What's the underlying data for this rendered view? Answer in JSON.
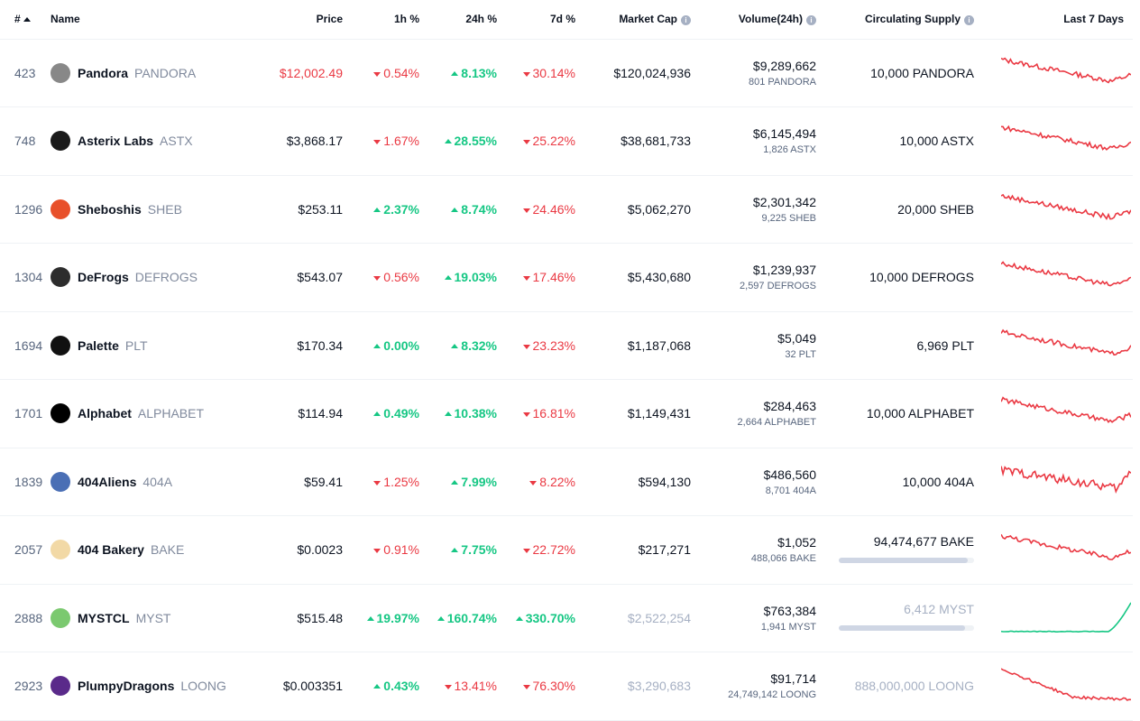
{
  "header": {
    "rank": "#",
    "name": "Name",
    "price": "Price",
    "h1": "1h %",
    "h24": "24h %",
    "d7": "7d %",
    "market_cap": "Market Cap",
    "volume": "Volume(24h)",
    "supply": "Circulating Supply",
    "last7": "Last 7 Days",
    "info_glyph": "i"
  },
  "colors": {
    "up": "#16c784",
    "down": "#ea3943",
    "muted": "#a6b0c3"
  },
  "rows": [
    {
      "rank": "423",
      "name": "Pandora",
      "symbol": "PANDORA",
      "price": "$12,002.49",
      "price_color": "#ea3943",
      "h1": "0.54%",
      "h1_dir": "down",
      "h24": "8.13%",
      "h24_dir": "up",
      "d7": "30.14%",
      "d7_dir": "down",
      "market_cap": "$120,024,936",
      "cap_muted": false,
      "volume": "$9,289,662",
      "volume_sub": "801 PANDORA",
      "supply": "10,000 PANDORA",
      "supply_muted": false,
      "supply_fill": null,
      "logo_color": "#888888",
      "logo_icon": "pandora-logo-icon",
      "trend": "down"
    },
    {
      "rank": "748",
      "name": "Asterix Labs",
      "symbol": "ASTX",
      "price": "$3,868.17",
      "price_color": "",
      "h1": "1.67%",
      "h1_dir": "down",
      "h24": "28.55%",
      "h24_dir": "up",
      "d7": "25.22%",
      "d7_dir": "down",
      "market_cap": "$38,681,733",
      "cap_muted": false,
      "volume": "$6,145,494",
      "volume_sub": "1,826 ASTX",
      "supply": "10,000 ASTX",
      "supply_muted": false,
      "supply_fill": null,
      "logo_color": "#1a1a1a",
      "logo_icon": "asterix-labs-logo-icon",
      "trend": "down"
    },
    {
      "rank": "1296",
      "name": "Sheboshis",
      "symbol": "SHEB",
      "price": "$253.11",
      "price_color": "",
      "h1": "2.37%",
      "h1_dir": "up",
      "h24": "8.74%",
      "h24_dir": "up",
      "d7": "24.46%",
      "d7_dir": "down",
      "market_cap": "$5,062,270",
      "cap_muted": false,
      "volume": "$2,301,342",
      "volume_sub": "9,225 SHEB",
      "supply": "20,000 SHEB",
      "supply_muted": false,
      "supply_fill": null,
      "logo_color": "#e8502a",
      "logo_icon": "sheboshis-logo-icon",
      "trend": "down"
    },
    {
      "rank": "1304",
      "name": "DeFrogs",
      "symbol": "DEFROGS",
      "price": "$543.07",
      "price_color": "",
      "h1": "0.56%",
      "h1_dir": "down",
      "h24": "19.03%",
      "h24_dir": "up",
      "d7": "17.46%",
      "d7_dir": "down",
      "market_cap": "$5,430,680",
      "cap_muted": false,
      "volume": "$1,239,937",
      "volume_sub": "2,597 DEFROGS",
      "supply": "10,000 DEFROGS",
      "supply_muted": false,
      "supply_fill": null,
      "logo_color": "#2d2d2d",
      "logo_icon": "defrogs-logo-icon",
      "trend": "down"
    },
    {
      "rank": "1694",
      "name": "Palette",
      "symbol": "PLT",
      "price": "$170.34",
      "price_color": "",
      "h1": "0.00%",
      "h1_dir": "up",
      "h24": "8.32%",
      "h24_dir": "up",
      "d7": "23.23%",
      "d7_dir": "down",
      "market_cap": "$1,187,068",
      "cap_muted": false,
      "volume": "$5,049",
      "volume_sub": "32 PLT",
      "supply": "6,969 PLT",
      "supply_muted": false,
      "supply_fill": null,
      "logo_color": "#111111",
      "logo_icon": "palette-logo-icon",
      "trend": "down"
    },
    {
      "rank": "1701",
      "name": "Alphabet",
      "symbol": "ALPHABET",
      "price": "$114.94",
      "price_color": "",
      "h1": "0.49%",
      "h1_dir": "up",
      "h24": "10.38%",
      "h24_dir": "up",
      "d7": "16.81%",
      "d7_dir": "down",
      "market_cap": "$1,149,431",
      "cap_muted": false,
      "volume": "$284,463",
      "volume_sub": "2,664 ALPHABET",
      "supply": "10,000 ALPHABET",
      "supply_muted": false,
      "supply_fill": null,
      "logo_color": "#000000",
      "logo_icon": "alphabet-logo-icon",
      "trend": "down"
    },
    {
      "rank": "1839",
      "name": "404Aliens",
      "symbol": "404A",
      "price": "$59.41",
      "price_color": "",
      "h1": "1.25%",
      "h1_dir": "down",
      "h24": "7.99%",
      "h24_dir": "up",
      "d7": "8.22%",
      "d7_dir": "down",
      "market_cap": "$594,130",
      "cap_muted": false,
      "volume": "$486,560",
      "volume_sub": "8,701 404A",
      "supply": "10,000 404A",
      "supply_muted": false,
      "supply_fill": null,
      "logo_color": "#4a6fb5",
      "logo_icon": "404aliens-logo-icon",
      "trend": "down-recover"
    },
    {
      "rank": "2057",
      "name": "404 Bakery",
      "symbol": "BAKE",
      "price": "$0.0023",
      "price_color": "",
      "h1": "0.91%",
      "h1_dir": "down",
      "h24": "7.75%",
      "h24_dir": "up",
      "d7": "22.72%",
      "d7_dir": "down",
      "market_cap": "$217,271",
      "cap_muted": false,
      "volume": "$1,052",
      "volume_sub": "488,066 BAKE",
      "supply": "94,474,677 BAKE",
      "supply_muted": false,
      "supply_fill": 0.95,
      "logo_color": "#f2d9a6",
      "logo_icon": "404-bakery-logo-icon",
      "trend": "down"
    },
    {
      "rank": "2888",
      "name": "MYSTCL",
      "symbol": "MYST",
      "price": "$515.48",
      "price_color": "",
      "h1": "19.97%",
      "h1_dir": "up",
      "h24": "160.74%",
      "h24_dir": "up",
      "d7": "330.70%",
      "d7_dir": "up",
      "market_cap": "$2,522,254",
      "cap_muted": true,
      "volume": "$763,384",
      "volume_sub": "1,941 MYST",
      "supply": "6,412 MYST",
      "supply_muted": true,
      "supply_fill": 0.93,
      "logo_color": "#7bc96f",
      "logo_icon": "mystcl-logo-icon",
      "trend": "up"
    },
    {
      "rank": "2923",
      "name": "PlumpyDragons",
      "symbol": "LOONG",
      "price": "$0.003351",
      "price_color": "",
      "h1": "0.43%",
      "h1_dir": "up",
      "h24": "13.41%",
      "h24_dir": "down",
      "d7": "76.30%",
      "d7_dir": "down",
      "market_cap": "$3,290,683",
      "cap_muted": true,
      "volume": "$91,714",
      "volume_sub": "24,749,142 LOONG",
      "supply": "888,000,000 LOONG",
      "supply_muted": true,
      "supply_fill": null,
      "logo_color": "#5a2a8a",
      "logo_icon": "plumpydragons-logo-icon",
      "trend": "down-steep"
    }
  ]
}
